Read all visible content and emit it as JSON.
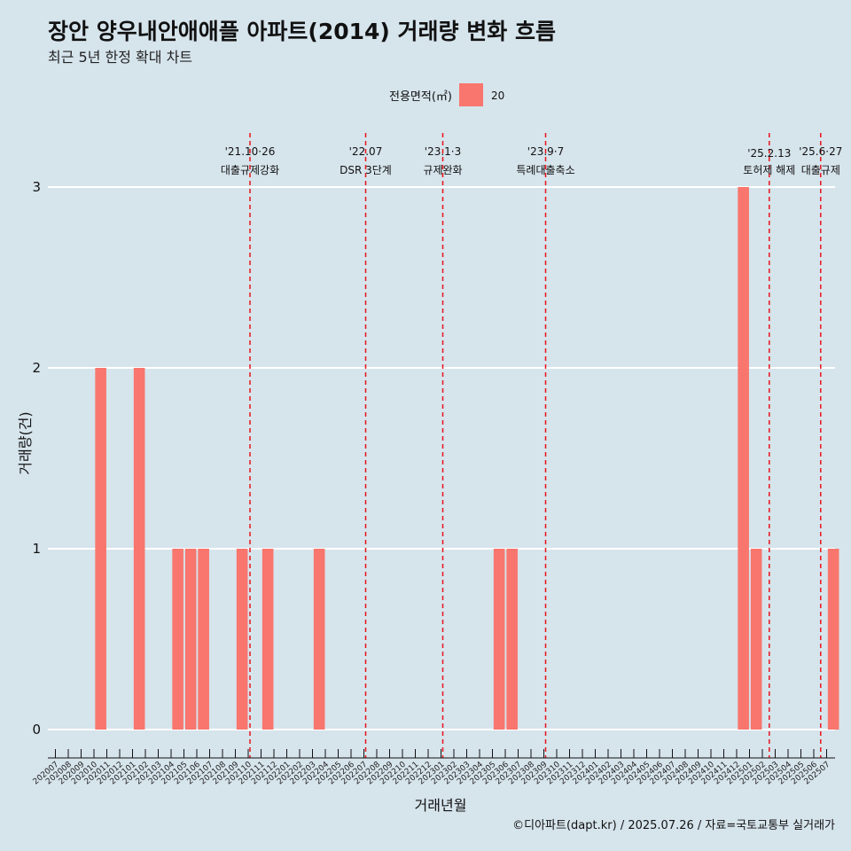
{
  "header": {
    "title": "장안 양우내안애애플 아파트(2014) 거래량 변화 흐름",
    "subtitle": "최근 5년 한정 확대 차트"
  },
  "caption": "©디아파트(dapt.kr) / 2025.07.26 / 자료=국토교통부 실거래가",
  "colors": {
    "bar": "#f8766d",
    "background": "#d6e4ec",
    "grid": "#ffffff",
    "event_line": "#e8141b"
  },
  "chart_data": {
    "type": "bar",
    "xlabel": "거래년월",
    "ylabel": "거래량(건)",
    "ylim": [
      0,
      3
    ],
    "y_ticks": [
      0,
      1,
      2,
      3
    ],
    "grid": "horizontal",
    "legend": {
      "title": "전용면적(㎡)",
      "position": "top",
      "entries": [
        "20"
      ]
    },
    "categories": [
      "202007",
      "202008",
      "202009",
      "202010",
      "202011",
      "202012",
      "202101",
      "202102",
      "202103",
      "202104",
      "202105",
      "202106",
      "202107",
      "202108",
      "202109",
      "202110",
      "202111",
      "202112",
      "202201",
      "202202",
      "202203",
      "202204",
      "202205",
      "202206",
      "202207",
      "202208",
      "202209",
      "202210",
      "202211",
      "202212",
      "202301",
      "202302",
      "202303",
      "202304",
      "202305",
      "202306",
      "202307",
      "202308",
      "202309",
      "202310",
      "202311",
      "202312",
      "202401",
      "202402",
      "202403",
      "202404",
      "202405",
      "202406",
      "202407",
      "202408",
      "202409",
      "202410",
      "202411",
      "202412",
      "202501",
      "202502",
      "202503",
      "202504",
      "202505",
      "202506",
      "202507"
    ],
    "series": [
      {
        "name": "20",
        "values": [
          0,
          0,
          0,
          2,
          0,
          0,
          2,
          0,
          0,
          1,
          1,
          1,
          0,
          0,
          1,
          0,
          1,
          0,
          0,
          0,
          1,
          0,
          0,
          0,
          0,
          0,
          0,
          0,
          0,
          0,
          0,
          0,
          0,
          0,
          1,
          1,
          0,
          0,
          0,
          0,
          0,
          0,
          0,
          0,
          0,
          0,
          0,
          0,
          0,
          0,
          0,
          0,
          0,
          3,
          1,
          0,
          0,
          0,
          0,
          0,
          1
        ]
      }
    ],
    "annotations": [
      {
        "date": "'21.10·26",
        "label": "대출규제강화",
        "x": 15.0
      },
      {
        "date": "'22.07",
        "label": "DSR 3단계",
        "x": 24.0
      },
      {
        "date": "'23.1·3",
        "label": "규제완화",
        "x": 30.0
      },
      {
        "date": "'23.9·7",
        "label": "특례대출축소",
        "x": 38.0
      },
      {
        "date": "'25.2.13",
        "label": "토허제 해제",
        "x": 55.4
      },
      {
        "date": "'25.6·27",
        "label": "대출규제",
        "x": 59.4
      }
    ]
  }
}
